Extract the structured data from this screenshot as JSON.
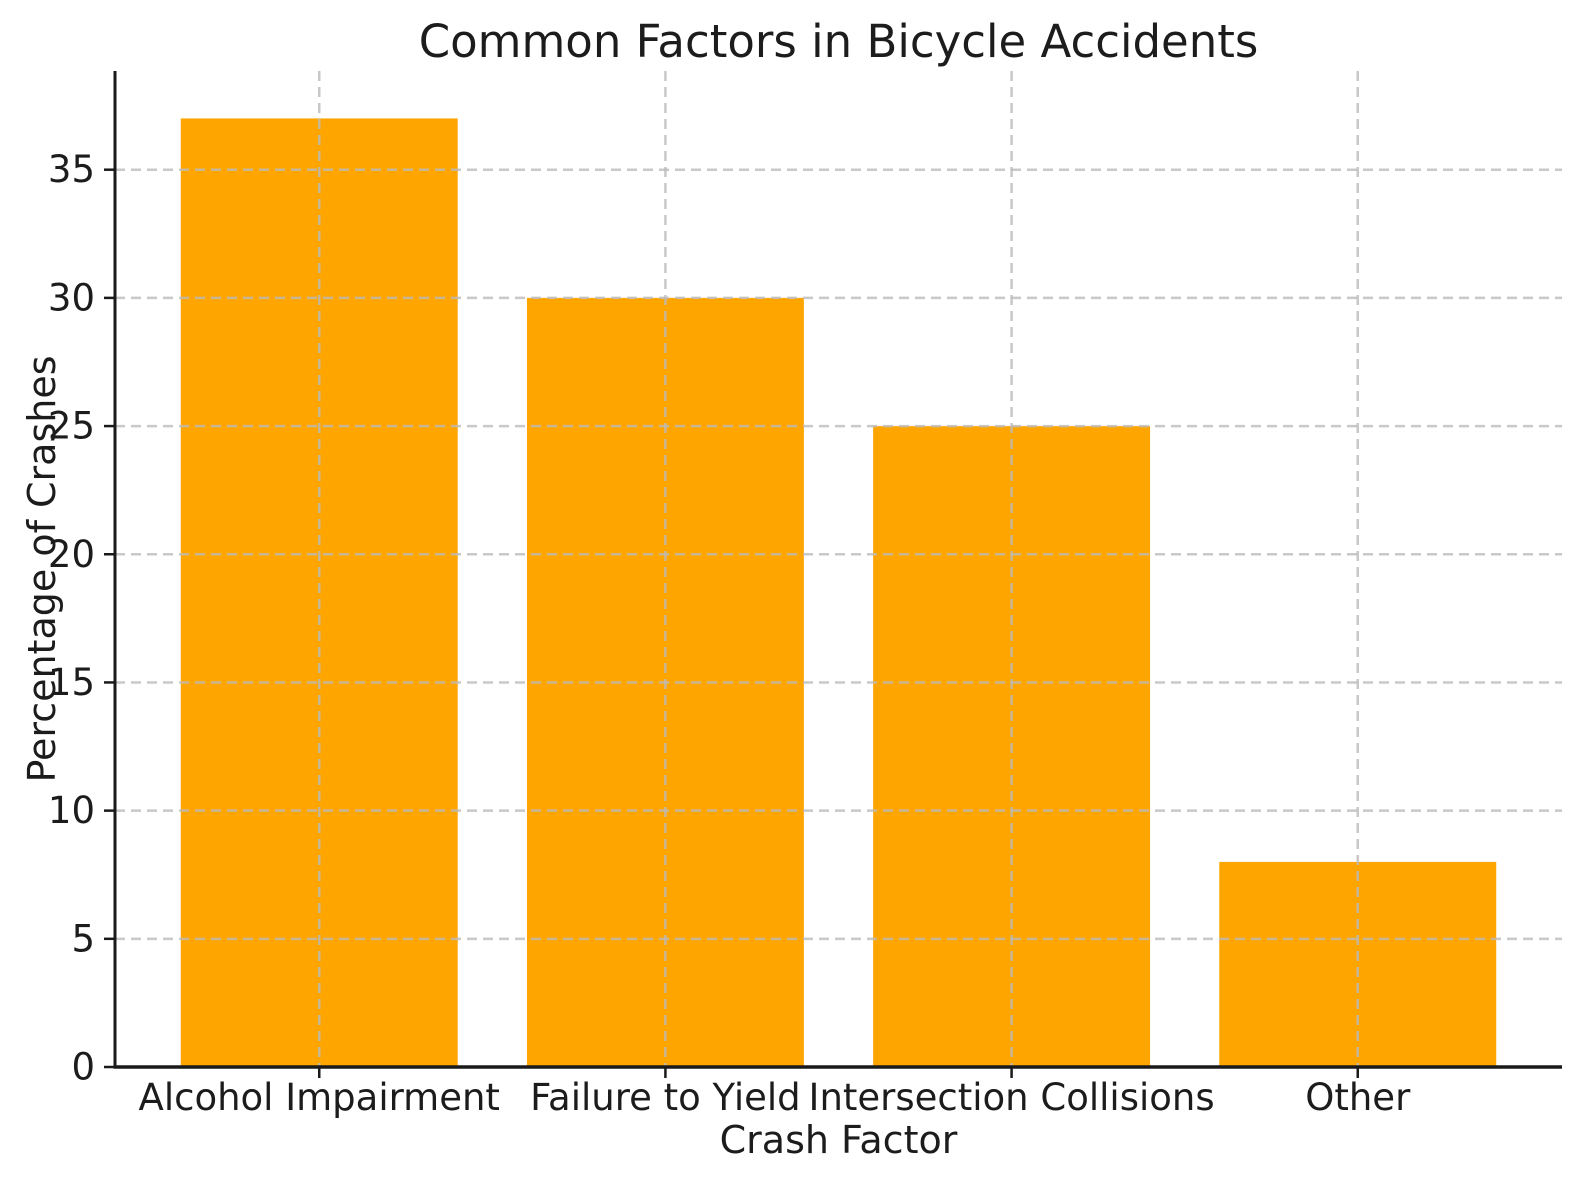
{
  "chart_data": {
    "type": "bar",
    "title": "Common Factors in Bicycle Accidents",
    "xlabel": "Crash Factor",
    "ylabel": "Percentage of Crashes",
    "categories": [
      "Alcohol Impairment",
      "Failure to Yield",
      "Intersection Collisions",
      "Other"
    ],
    "values": [
      37,
      30,
      25,
      8
    ],
    "yticks": [
      0,
      5,
      10,
      15,
      20,
      25,
      30,
      35
    ],
    "ylim": [
      0,
      38.85
    ],
    "grid": true,
    "legend_position": "none",
    "colors": {
      "bar": "#FFA500",
      "grid": "#bbbbbb",
      "axis": "#1a1a1a",
      "text": "#1c1c1c",
      "background": "#ffffff"
    }
  }
}
